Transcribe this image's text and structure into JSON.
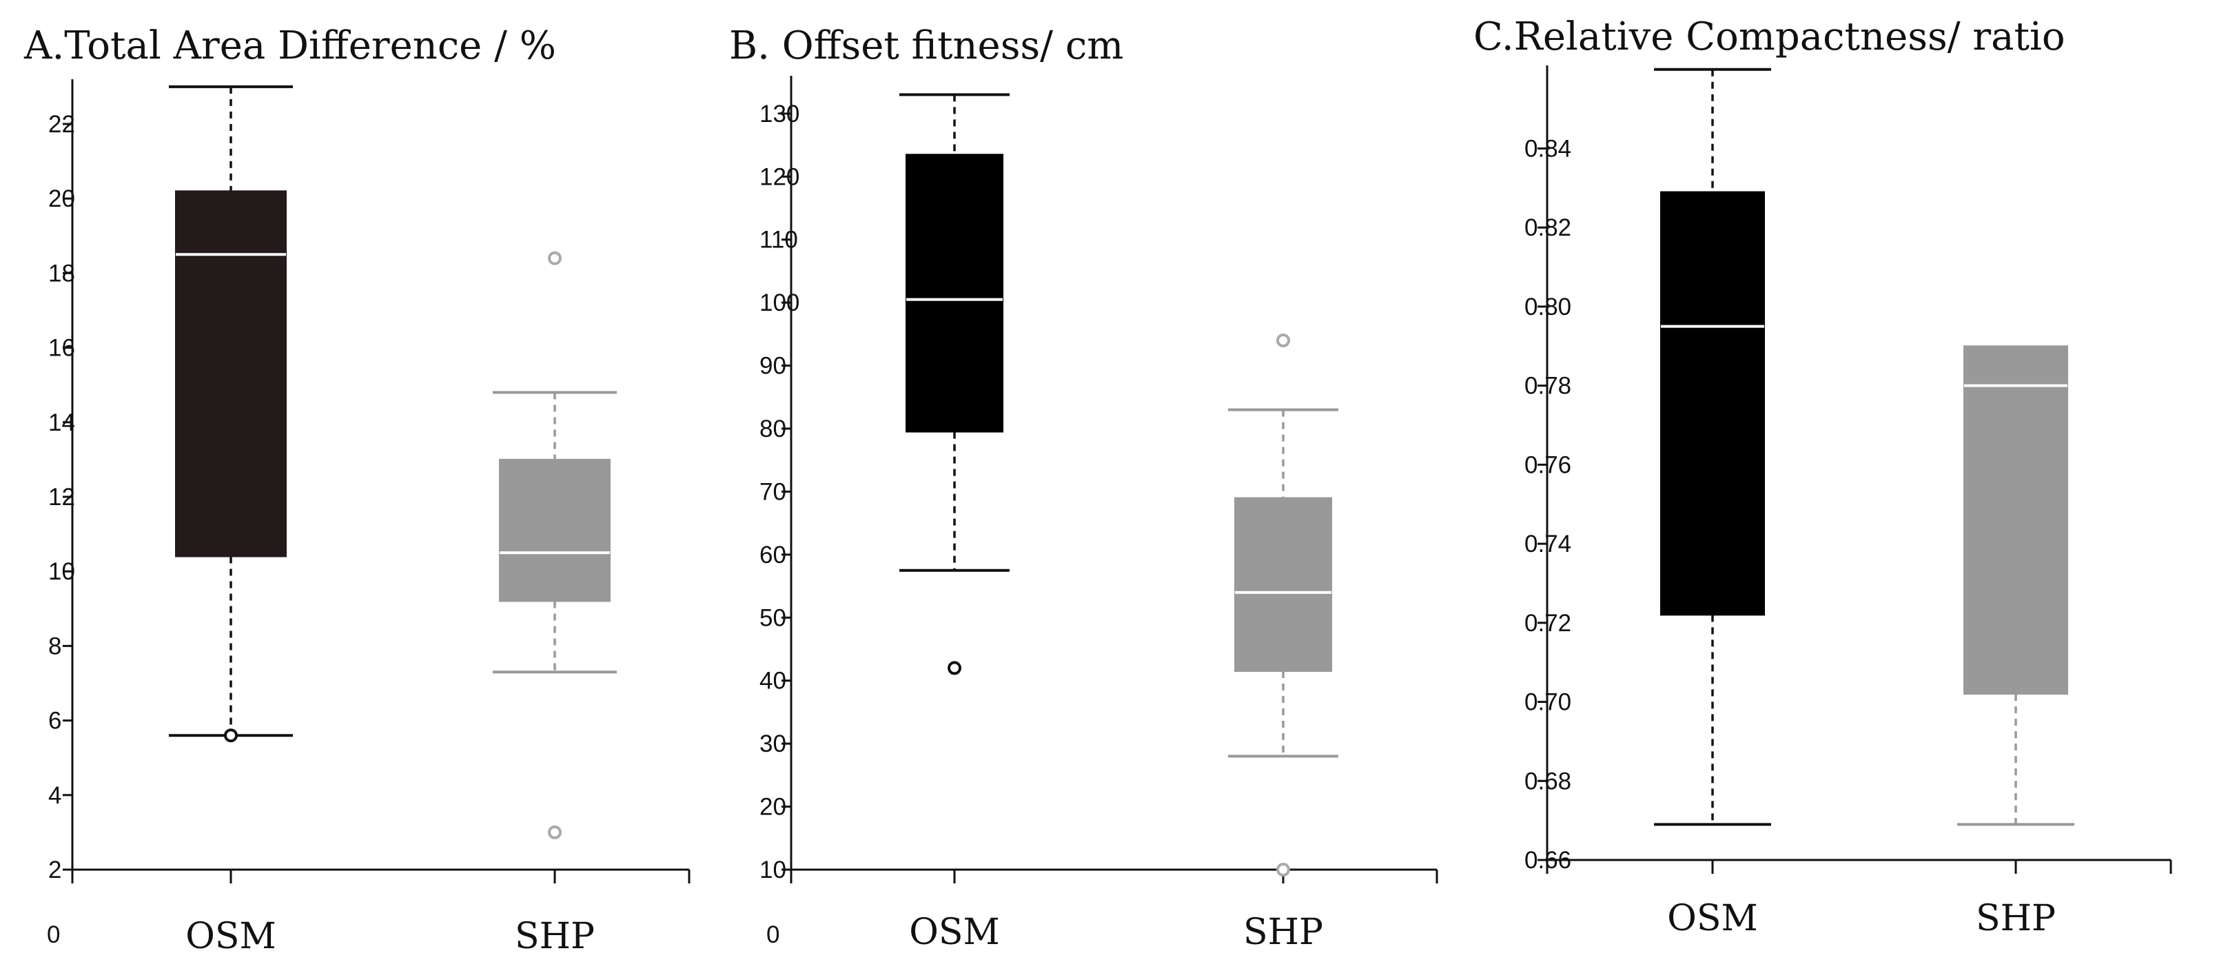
{
  "chart_data": [
    {
      "type": "box",
      "title": "A.Total Area Difference / %",
      "xlabel": "",
      "ylabel": "",
      "ylim": [
        2,
        23.2
      ],
      "yticks": [
        2,
        4,
        6,
        8,
        10,
        12,
        14,
        16,
        18,
        20,
        22
      ],
      "origin_label": "0",
      "categories": [
        "OSM",
        "SHP"
      ],
      "series": [
        {
          "name": "OSM",
          "color": "#231a1c",
          "median_color": "#ffffff",
          "whisker_color": "#111111",
          "dashed_color": "#111111",
          "whisker_low": 5.6,
          "q1": 10.4,
          "median": 18.5,
          "q3": 20.2,
          "whisker_high": 23.0,
          "outliers": [
            5.6
          ]
        },
        {
          "name": "SHP",
          "color": "#999999",
          "median_color": "#ffffff",
          "whisker_color": "#999999",
          "dashed_color": "#999999",
          "whisker_low": 7.3,
          "q1": 9.2,
          "median": 10.5,
          "q3": 13.0,
          "whisker_high": 14.8,
          "outliers": [
            18.4,
            3.0
          ]
        }
      ]
    },
    {
      "type": "box",
      "title": "B. Offset fitness/ cm",
      "xlabel": "",
      "ylabel": "",
      "ylim": [
        10,
        136
      ],
      "yticks": [
        10,
        20,
        30,
        40,
        50,
        60,
        70,
        80,
        90,
        100,
        110,
        120,
        130
      ],
      "origin_label": "0",
      "categories": [
        "OSM",
        "SHP"
      ],
      "series": [
        {
          "name": "OSM",
          "color": "#000000",
          "median_color": "#ffffff",
          "whisker_color": "#111111",
          "dashed_color": "#111111",
          "whisker_low": 57.5,
          "q1": 79.5,
          "median": 100.5,
          "q3": 123.5,
          "whisker_high": 133,
          "outliers": [
            42
          ]
        },
        {
          "name": "SHP",
          "color": "#999999",
          "median_color": "#ffffff",
          "whisker_color": "#999999",
          "dashed_color": "#999999",
          "whisker_low": 28,
          "q1": 41.5,
          "median": 54,
          "q3": 69,
          "whisker_high": 83,
          "outliers": [
            94,
            10
          ]
        }
      ]
    },
    {
      "type": "box",
      "title": "C.Relative Compactness/ ratio",
      "xlabel": "",
      "ylabel": "",
      "ylim": [
        0.66,
        0.861
      ],
      "yticks": [
        0.66,
        0.68,
        0.7,
        0.72,
        0.74,
        0.76,
        0.78,
        0.8,
        0.82,
        0.84
      ],
      "tick_format": "0.00",
      "categories": [
        "OSM",
        "SHP"
      ],
      "series": [
        {
          "name": "OSM",
          "color": "#000000",
          "median_color": "#ffffff",
          "whisker_color": "#111111",
          "dashed_color": "#111111",
          "whisker_low": 0.669,
          "q1": 0.722,
          "median": 0.795,
          "q3": 0.829,
          "whisker_high": 0.86,
          "outliers": []
        },
        {
          "name": "SHP",
          "color": "#999999",
          "median_color": "#ffffff",
          "whisker_color": "#999999",
          "dashed_color": "#999999",
          "whisker_low": 0.669,
          "q1": 0.702,
          "median": 0.78,
          "q3": 0.79,
          "whisker_high": 0.79,
          "outliers": []
        }
      ]
    }
  ]
}
